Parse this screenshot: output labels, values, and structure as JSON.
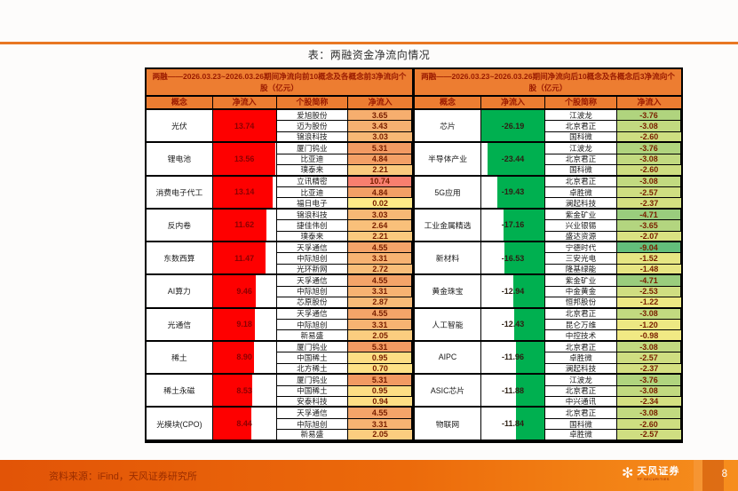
{
  "page": {
    "title": "表：两融资金净流向情况",
    "source": "资料来源：iFind，天风证券研究所",
    "page_number": "8"
  },
  "logo": {
    "name": "天风证券",
    "sub": "TF SECURITIES",
    "flower_glyph": "✻"
  },
  "colors": {
    "accent_orange": "#e87722",
    "header_bg": "#ed7d31",
    "header_text": "#9a1a00",
    "left_bar": "#fe0000",
    "right_bar": "#00b050",
    "footer_left": "#e25407",
    "footer_right": "#f68e1e"
  },
  "tables": {
    "left": {
      "header": "两融——2026.03.23~2026.03.26期间净流向前10概念及各概念前3净流向个股（亿元）",
      "columns": [
        "概念",
        "净流入",
        "个股简称",
        "净流入"
      ],
      "bar_color": "#fe0000",
      "bar_align": "left",
      "bar_max": 13.74,
      "flow_text_color": "#8b0000",
      "groups": [
        {
          "concept": "光伏",
          "inflow": "13.74",
          "stocks": [
            {
              "name": "爱旭股份",
              "value": "3.65",
              "color": "#F6AE6E"
            },
            {
              "name": "迈为股份",
              "value": "3.43",
              "color": "#F6B171"
            },
            {
              "name": "锦浪科技",
              "value": "3.03",
              "color": "#F7B875"
            }
          ]
        },
        {
          "concept": "锂电池",
          "inflow": "13.56",
          "stocks": [
            {
              "name": "厦门钨业",
              "value": "5.31",
              "color": "#F29A62"
            },
            {
              "name": "比亚迪",
              "value": "4.84",
              "color": "#F3A066"
            },
            {
              "name": "璞泰来",
              "value": "2.21",
              "color": "#FACA7E"
            }
          ]
        },
        {
          "concept": "消费电子代工",
          "inflow": "13.14",
          "stocks": [
            {
              "name": "立讯精密",
              "value": "10.74",
              "color": "#F87F6F"
            },
            {
              "name": "比亚迪",
              "value": "4.84",
              "color": "#F3A066"
            },
            {
              "name": "福日电子",
              "value": "0.02",
              "color": "#FFEA87"
            }
          ]
        },
        {
          "concept": "反内卷",
          "inflow": "11.62",
          "stocks": [
            {
              "name": "锦浪科技",
              "value": "3.03",
              "color": "#F7B875"
            },
            {
              "name": "捷佳伟创",
              "value": "2.64",
              "color": "#F9C07A"
            },
            {
              "name": "璞泰来",
              "value": "2.21",
              "color": "#FACA7E"
            }
          ]
        },
        {
          "concept": "东数西算",
          "inflow": "11.47",
          "stocks": [
            {
              "name": "天孚通信",
              "value": "4.55",
              "color": "#F4A469"
            },
            {
              "name": "中际旭创",
              "value": "3.31",
              "color": "#F7B372"
            },
            {
              "name": "光环新网",
              "value": "2.72",
              "color": "#F9BE79"
            }
          ]
        },
        {
          "concept": "AI算力",
          "inflow": "9.46",
          "stocks": [
            {
              "name": "天孚通信",
              "value": "4.55",
              "color": "#F4A469"
            },
            {
              "name": "中际旭创",
              "value": "3.31",
              "color": "#F7B372"
            },
            {
              "name": "芯原股份",
              "value": "2.87",
              "color": "#F8BB77"
            }
          ]
        },
        {
          "concept": "光通信",
          "inflow": "9.18",
          "stocks": [
            {
              "name": "天孚通信",
              "value": "4.55",
              "color": "#F4A469"
            },
            {
              "name": "中际旭创",
              "value": "3.31",
              "color": "#F7B372"
            },
            {
              "name": "新易盛",
              "value": "2.05",
              "color": "#FBCD7F"
            }
          ]
        },
        {
          "concept": "稀土",
          "inflow": "8.90",
          "stocks": [
            {
              "name": "厦门钨业",
              "value": "5.31",
              "color": "#F29A62"
            },
            {
              "name": "中国稀土",
              "value": "0.95",
              "color": "#FDDE84"
            },
            {
              "name": "北方稀土",
              "value": "0.70",
              "color": "#FEE286"
            }
          ]
        },
        {
          "concept": "稀土永磁",
          "inflow": "8.53",
          "stocks": [
            {
              "name": "厦门钨业",
              "value": "5.31",
              "color": "#F29A62"
            },
            {
              "name": "中国稀土",
              "value": "0.95",
              "color": "#FDDE84"
            },
            {
              "name": "安泰科技",
              "value": "0.94",
              "color": "#FDDE84"
            }
          ]
        },
        {
          "concept": "光模块(CPO)",
          "inflow": "8.44",
          "stocks": [
            {
              "name": "天孚通信",
              "value": "4.55",
              "color": "#F4A469"
            },
            {
              "name": "中际旭创",
              "value": "3.31",
              "color": "#F7B372"
            },
            {
              "name": "新易盛",
              "value": "2.05",
              "color": "#FBCD7F"
            }
          ]
        }
      ]
    },
    "right": {
      "header": "两融——2026.03.23~2026.03.26期间净流向后10概念及各概念后3净流向个股（亿元）",
      "columns": [
        "概念",
        "净流入",
        "个股简称",
        "净流入"
      ],
      "bar_color": "#00b050",
      "bar_align": "right",
      "bar_max": 26.19,
      "flow_text_color": "#2e2014",
      "groups": [
        {
          "concept": "芯片",
          "inflow": "-26.19",
          "stocks": [
            {
              "name": "江波龙",
              "value": "-3.76",
              "color": "#B0D47E"
            },
            {
              "name": "北京君正",
              "value": "-3.08",
              "color": "#C2DA80"
            },
            {
              "name": "国科微",
              "value": "-2.60",
              "color": "#CEDE81"
            }
          ]
        },
        {
          "concept": "半导体产业",
          "inflow": "-23.44",
          "stocks": [
            {
              "name": "江波龙",
              "value": "-3.76",
              "color": "#B0D47E"
            },
            {
              "name": "北京君正",
              "value": "-3.08",
              "color": "#C2DA80"
            },
            {
              "name": "国科微",
              "value": "-2.60",
              "color": "#CEDE81"
            }
          ]
        },
        {
          "concept": "5G应用",
          "inflow": "-19.43",
          "stocks": [
            {
              "name": "北京君正",
              "value": "-3.08",
              "color": "#C2DA80"
            },
            {
              "name": "卓胜微",
              "value": "-2.57",
              "color": "#CFDE81"
            },
            {
              "name": "澜起科技",
              "value": "-2.37",
              "color": "#D4E081"
            }
          ]
        },
        {
          "concept": "工业金属精选",
          "inflow": "-17.16",
          "stocks": [
            {
              "name": "紫金矿业",
              "value": "-4.71",
              "color": "#9ACD7D"
            },
            {
              "name": "兴业银锡",
              "value": "-3.65",
              "color": "#B3D57F"
            },
            {
              "name": "盛达资源",
              "value": "-2.07",
              "color": "#DAE282"
            }
          ]
        },
        {
          "concept": "新材料",
          "inflow": "-16.53",
          "stocks": [
            {
              "name": "宁德时代",
              "value": "-9.04",
              "color": "#63BE7B"
            },
            {
              "name": "三安光电",
              "value": "-1.52",
              "color": "#E6E683"
            },
            {
              "name": "隆基绿能",
              "value": "-1.48",
              "color": "#E7E683"
            }
          ]
        },
        {
          "concept": "黄金珠宝",
          "inflow": "-12.94",
          "stocks": [
            {
              "name": "紫金矿业",
              "value": "-4.71",
              "color": "#9ACD7D"
            },
            {
              "name": "中金黄金",
              "value": "-2.53",
              "color": "#D0DE81"
            },
            {
              "name": "恒邦股份",
              "value": "-1.22",
              "color": "#EDE883"
            }
          ]
        },
        {
          "concept": "人工智能",
          "inflow": "-12.43",
          "stocks": [
            {
              "name": "北京君正",
              "value": "-3.08",
              "color": "#C2DA80"
            },
            {
              "name": "昆仑万维",
              "value": "-1.20",
              "color": "#EDE883"
            },
            {
              "name": "中控技术",
              "value": "-0.98",
              "color": "#F1E984"
            }
          ]
        },
        {
          "concept": "AIPC",
          "inflow": "-11.96",
          "stocks": [
            {
              "name": "北京君正",
              "value": "-3.08",
              "color": "#C2DA80"
            },
            {
              "name": "卓胜微",
              "value": "-2.57",
              "color": "#CFDE81"
            },
            {
              "name": "澜起科技",
              "value": "-2.37",
              "color": "#D4E081"
            }
          ]
        },
        {
          "concept": "ASIC芯片",
          "inflow": "-11.88",
          "stocks": [
            {
              "name": "江波龙",
              "value": "-3.76",
              "color": "#B0D47E"
            },
            {
              "name": "北京君正",
              "value": "-3.08",
              "color": "#C2DA80"
            },
            {
              "name": "中兴通讯",
              "value": "-2.34",
              "color": "#D4E081"
            }
          ]
        },
        {
          "concept": "物联网",
          "inflow": "-11.84",
          "stocks": [
            {
              "name": "北京君正",
              "value": "-3.08",
              "color": "#C2DA80"
            },
            {
              "name": "国科微",
              "value": "-2.60",
              "color": "#CEDE81"
            },
            {
              "name": "卓胜微",
              "value": "-2.57",
              "color": "#CFDE81"
            }
          ]
        }
      ]
    }
  }
}
